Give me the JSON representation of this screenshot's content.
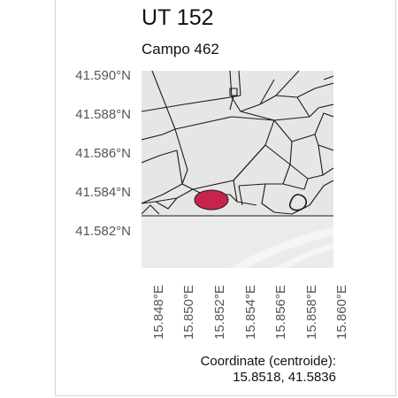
{
  "title": "UT 152",
  "subtitle": "Campo 462",
  "map": {
    "y_ticks": [
      "41.590°N",
      "41.588°N",
      "41.586°N",
      "41.584°N",
      "41.582°N"
    ],
    "x_ticks": [
      "15.848°E",
      "15.850°E",
      "15.852°E",
      "15.854°E",
      "15.856°E",
      "15.858°E",
      "15.860°E"
    ],
    "highlight_color": "#c8234d",
    "land_color": "#e6e7e5",
    "road_color": "#f7f7f7",
    "boundary_color": "#1a1a1a"
  },
  "caption": {
    "line1": "Coordinate (centroide):",
    "line2": "15.8518, 41.5836"
  }
}
